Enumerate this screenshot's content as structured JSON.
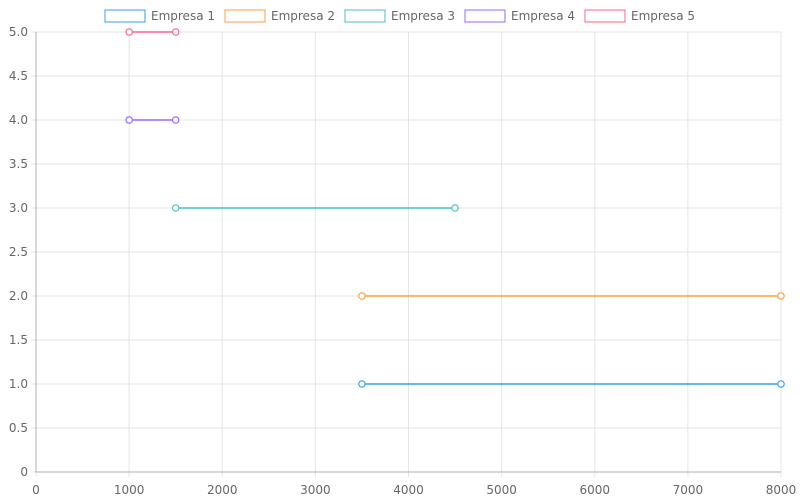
{
  "chart_data": {
    "type": "line",
    "title": "",
    "xlabel": "",
    "ylabel": "",
    "xlim": [
      0,
      8000
    ],
    "ylim": [
      0,
      5
    ],
    "x_ticks": [
      "0",
      "1000",
      "2000",
      "3000",
      "4000",
      "5000",
      "6000",
      "7000",
      "8000"
    ],
    "y_ticks": [
      "0",
      "0.5",
      "1.0",
      "1.5",
      "2.0",
      "2.5",
      "3.0",
      "3.5",
      "4.0",
      "4.5",
      "5.0"
    ],
    "grid": true,
    "legend_position": "top",
    "series": [
      {
        "name": "Empresa 1",
        "color": "#36a2eb",
        "points": [
          {
            "x": 3500,
            "y": 1
          },
          {
            "x": 8000,
            "y": 1
          }
        ]
      },
      {
        "name": "Empresa 2",
        "color": "#ff9f40",
        "points": [
          {
            "x": 3500,
            "y": 2
          },
          {
            "x": 8000,
            "y": 2
          }
        ]
      },
      {
        "name": "Empresa 3",
        "color": "#4bc0c0",
        "points": [
          {
            "x": 1500,
            "y": 3
          },
          {
            "x": 4500,
            "y": 3
          }
        ]
      },
      {
        "name": "Empresa 4",
        "color": "#9966ff",
        "points": [
          {
            "x": 1000,
            "y": 4
          },
          {
            "x": 1500,
            "y": 4
          }
        ]
      },
      {
        "name": "Empresa 5",
        "color": "#ff6384",
        "points": [
          {
            "x": 1000,
            "y": 5
          },
          {
            "x": 1500,
            "y": 5
          }
        ]
      }
    ]
  }
}
